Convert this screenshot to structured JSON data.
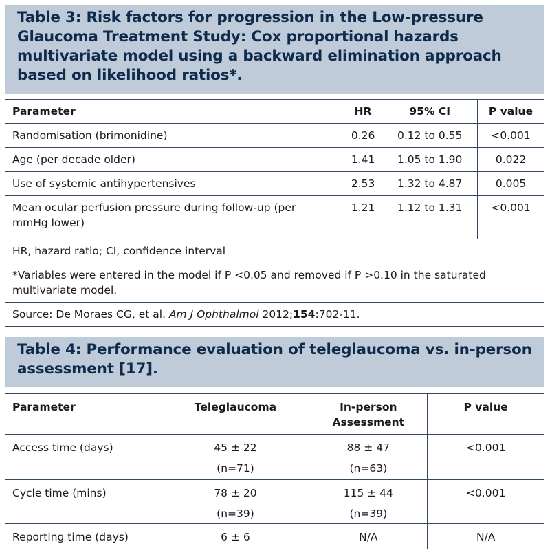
{
  "table3": {
    "caption": "Table 3: Risk factors for progression in the Low-pressure Glaucoma Treatment Study: Cox proportional hazards multivariate model using a backward elimination approach based on likelihood ratios*.",
    "headers": [
      "Parameter",
      "HR",
      "95% CI",
      "P value"
    ],
    "rows": [
      [
        "Randomisation (brimonidine)",
        "0.26",
        "0.12 to 0.55",
        "<0.001"
      ],
      [
        "Age (per decade older)",
        "1.41",
        "1.05 to 1.90",
        "0.022"
      ],
      [
        "Use of systemic antihypertensives",
        "2.53",
        "1.32 to 4.87",
        "0.005"
      ],
      [
        "Mean ocular perfusion pressure during follow-up (per mmHg lower)",
        "1.21",
        "1.12 to 1.31",
        "<0.001"
      ]
    ],
    "abbrev": "HR, hazard ratio; CI, confidence interval",
    "footnote": "*Variables were entered in the model if P <0.05 and removed if P >0.10 in the saturated multivariate model.",
    "source": {
      "prefix": "Source: De Moraes CG, et al. ",
      "journal": "Am J Ophthalmol",
      "year": " 2012;",
      "volume": "154",
      "pages": ":702-11."
    }
  },
  "table4": {
    "caption": "Table 4: Performance evaluation of teleglaucoma vs. in-person assessment [17].",
    "headers": [
      "Parameter",
      "Teleglaucoma",
      "In-person Assessment",
      "P value"
    ],
    "rows": [
      {
        "param": "Access time (days)",
        "tele": "45 ± 22",
        "tele_n": "(n=71)",
        "inp": "88 ± 47",
        "inp_n": "(n=63)",
        "p": "<0.001"
      },
      {
        "param": "Cycle time (mins)",
        "tele": "78 ± 20",
        "tele_n": "(n=39)",
        "inp": "115 ± 44",
        "inp_n": "(n=39)",
        "p": "<0.001"
      },
      {
        "param": "Reporting time (days)",
        "tele": "6 ± 6",
        "tele_n": "",
        "inp": "N/A",
        "inp_n": "",
        "p": "N/A"
      }
    ]
  }
}
